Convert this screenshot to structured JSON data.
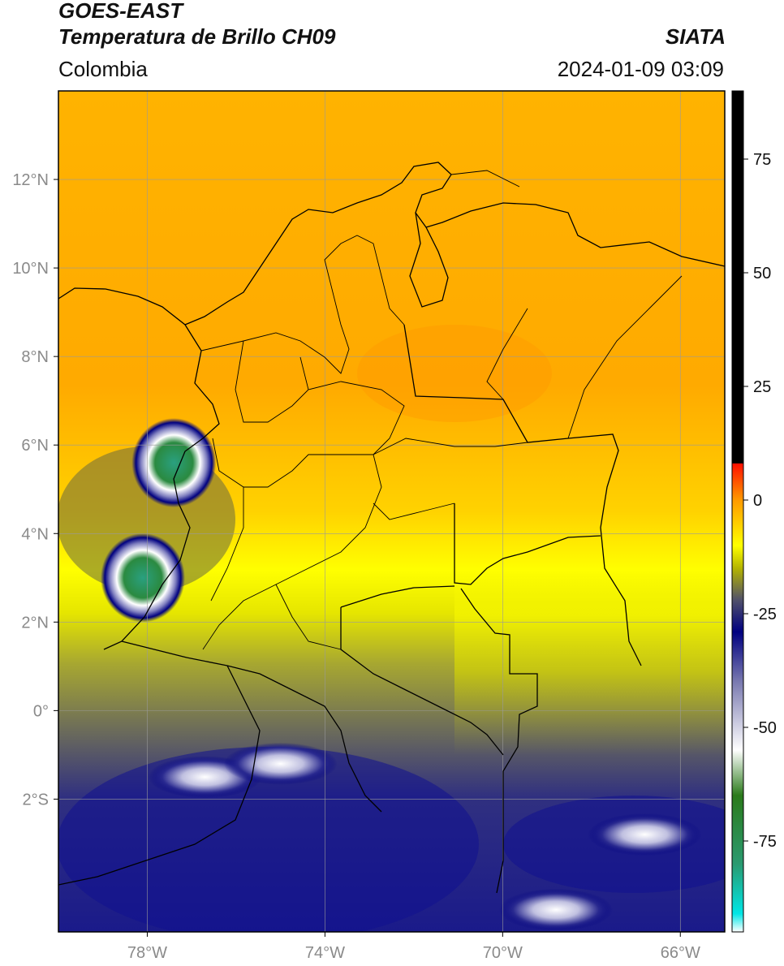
{
  "header": {
    "satellite": "GOES-EAST",
    "product": "Temperatura de Brillo CH09",
    "institution": "SIATA",
    "region": "Colombia",
    "datetime": "2024-01-09 03:09"
  },
  "map": {
    "lon_range": [
      -80,
      -65
    ],
    "lat_range": [
      -5,
      14
    ],
    "lon_ticks": [
      {
        "value": -78,
        "label": "78°W"
      },
      {
        "value": -74,
        "label": "74°W"
      },
      {
        "value": -70,
        "label": "70°W"
      },
      {
        "value": -66,
        "label": "66°W"
      }
    ],
    "lat_ticks": [
      {
        "value": 12,
        "label": "12°N"
      },
      {
        "value": 10,
        "label": "10°N"
      },
      {
        "value": 8,
        "label": "8°N"
      },
      {
        "value": 6,
        "label": "6°N"
      },
      {
        "value": 4,
        "label": "4°N"
      },
      {
        "value": 2,
        "label": "2°N"
      },
      {
        "value": 0,
        "label": "0°"
      },
      {
        "value": -2,
        "label": "2°S"
      }
    ],
    "cold_cloud_tops": [
      {
        "lon": -77.4,
        "lat": 5.6
      },
      {
        "lon": -78.1,
        "lat": 3.0
      },
      {
        "lon": -76.7,
        "lat": -1.5
      },
      {
        "lon": -75.0,
        "lat": -1.2
      },
      {
        "lon": -68.8,
        "lat": -4.5
      },
      {
        "lon": -66.8,
        "lat": -2.8
      }
    ]
  },
  "colorbar": {
    "range": [
      -95,
      90
    ],
    "ticks": [
      {
        "value": 75,
        "label": "75"
      },
      {
        "value": 50,
        "label": "50"
      },
      {
        "value": 25,
        "label": "25"
      },
      {
        "value": 0,
        "label": "0"
      },
      {
        "value": -25,
        "label": "-25"
      },
      {
        "value": -50,
        "label": "-50"
      },
      {
        "value": -75,
        "label": "-75"
      }
    ],
    "stops": [
      {
        "value": -95,
        "color": "#ffffff"
      },
      {
        "value": -91,
        "color": "#00e6e6"
      },
      {
        "value": -80,
        "color": "#2a9a70"
      },
      {
        "value": -65,
        "color": "#2a7a1a"
      },
      {
        "value": -55,
        "color": "#ffffff"
      },
      {
        "value": -40,
        "color": "#7a7ab0"
      },
      {
        "value": -29,
        "color": "#000080"
      },
      {
        "value": -22,
        "color": "#50506a"
      },
      {
        "value": -15,
        "color": "#b4b400"
      },
      {
        "value": -10,
        "color": "#ffff00"
      },
      {
        "value": 0,
        "color": "#ff9a00"
      },
      {
        "value": 8,
        "color": "#ff1000"
      },
      {
        "value": 8.1,
        "color": "#000000"
      },
      {
        "value": 90,
        "color": "#000000"
      }
    ]
  }
}
